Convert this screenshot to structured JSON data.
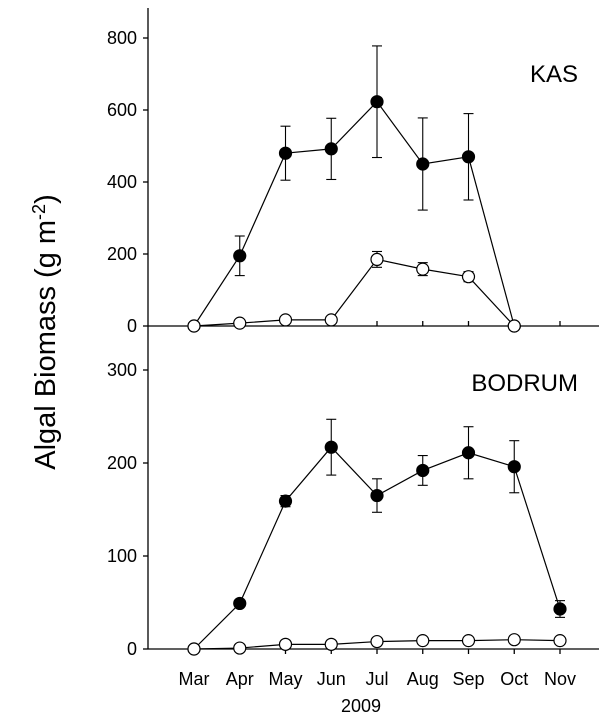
{
  "y_axis_title": "Algal Biomass (g m",
  "y_axis_title_sup": "-2",
  "y_axis_title_end": ")",
  "chart_data": [
    {
      "type": "line",
      "title": "KAS",
      "xlabel": "2009",
      "ylabel": "Algal Biomass (g m-2)",
      "categories": [
        "Mar",
        "Apr",
        "May",
        "Jun",
        "Jul",
        "Aug",
        "Sep",
        "Oct",
        "Nov"
      ],
      "ylim": [
        0,
        800
      ],
      "yticks": [
        0,
        200,
        400,
        600,
        800
      ],
      "series": [
        {
          "marker": "filled-circle",
          "values": [
            0,
            195,
            480,
            492,
            623,
            450,
            470,
            0,
            null
          ],
          "errors": [
            0,
            55,
            75,
            85,
            155,
            128,
            120,
            0,
            null
          ]
        },
        {
          "marker": "open-circle",
          "values": [
            0,
            8,
            17,
            17,
            185,
            158,
            137,
            0,
            null
          ],
          "errors": [
            0,
            5,
            6,
            6,
            22,
            18,
            14,
            0,
            null
          ]
        }
      ]
    },
    {
      "type": "line",
      "title": "BODRUM",
      "xlabel": "2009",
      "ylabel": "Algal Biomass (g m-2)",
      "categories": [
        "Mar",
        "Apr",
        "May",
        "Jun",
        "Jul",
        "Aug",
        "Sep",
        "Oct",
        "Nov"
      ],
      "ylim": [
        0,
        300
      ],
      "yticks": [
        0,
        100,
        200,
        300
      ],
      "series": [
        {
          "marker": "filled-circle",
          "values": [
            0,
            49,
            159,
            217,
            165,
            192,
            211,
            196,
            43
          ],
          "errors": [
            0,
            3,
            6,
            30,
            18,
            16,
            28,
            28,
            9
          ]
        },
        {
          "marker": "open-circle",
          "values": [
            0,
            1,
            5,
            5,
            8,
            9,
            9,
            10,
            9
          ],
          "errors": [
            0,
            0.5,
            1,
            1,
            1,
            1,
            1,
            1,
            1
          ]
        }
      ]
    }
  ]
}
